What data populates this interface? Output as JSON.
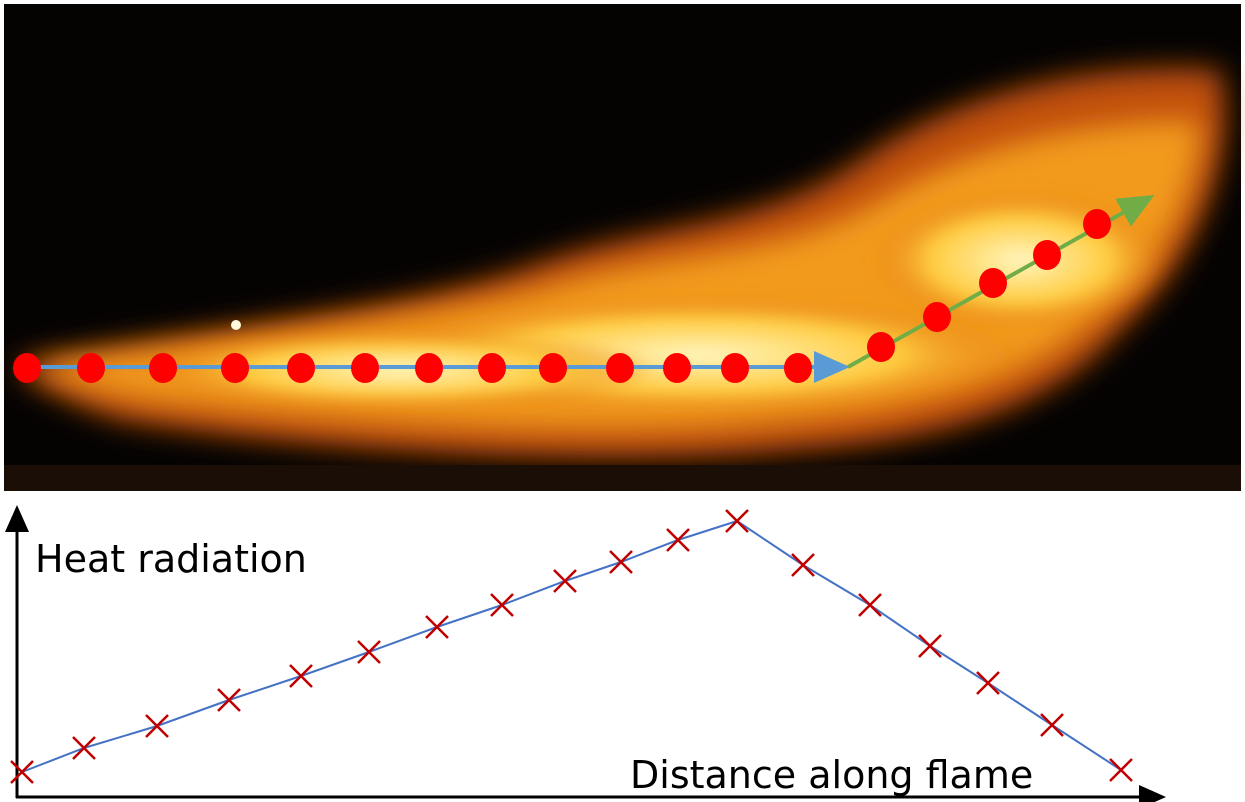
{
  "chart": {
    "y_label": "Heat radiation",
    "x_label": "Distance along flame"
  }
}
